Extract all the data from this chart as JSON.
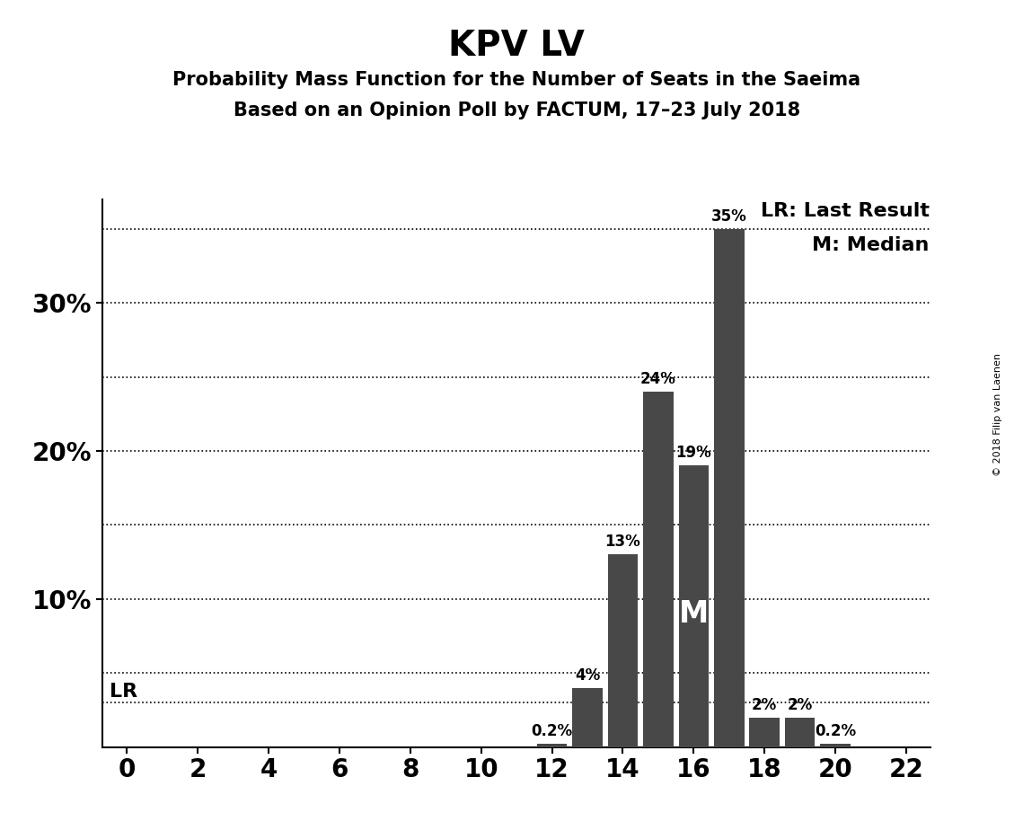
{
  "title": "KPV LV",
  "subtitle1": "Probability Mass Function for the Number of Seats in the Saeima",
  "subtitle2": "Based on an Opinion Poll by FACTUM, 17–23 July 2018",
  "copyright": "© 2018 Filip van Laenen",
  "seats": [
    0,
    1,
    2,
    3,
    4,
    5,
    6,
    7,
    8,
    9,
    10,
    11,
    12,
    13,
    14,
    15,
    16,
    17,
    18,
    19,
    20,
    21,
    22
  ],
  "probabilities": [
    0.0,
    0.0,
    0.0,
    0.0,
    0.0,
    0.0,
    0.0,
    0.0,
    0.0,
    0.0,
    0.0,
    0.0,
    0.2,
    4.0,
    13.0,
    24.0,
    19.0,
    35.0,
    2.0,
    2.0,
    0.2,
    0.0,
    0.0
  ],
  "bar_color": "#484848",
  "background_color": "#ffffff",
  "ylim": [
    0,
    37
  ],
  "yticks": [
    10,
    20,
    30
  ],
  "ytick_labels": [
    "10%",
    "20%",
    "30%"
  ],
  "grid_yticks": [
    5,
    10,
    15,
    20,
    25,
    30,
    35
  ],
  "lr_line_y": 3.0,
  "lr_label": "LR",
  "median_seat": 16,
  "median_label": "M",
  "legend_lr": "LR: Last Result",
  "legend_m": "M: Median",
  "bar_width": 0.85,
  "title_fontsize": 28,
  "subtitle_fontsize": 15,
  "axis_tick_fontsize": 20,
  "bar_label_fontsize": 12,
  "legend_fontsize": 16,
  "lr_label_fontsize": 16,
  "median_label_fontsize": 24,
  "xlim_left": -0.7,
  "xlim_right": 22.7
}
